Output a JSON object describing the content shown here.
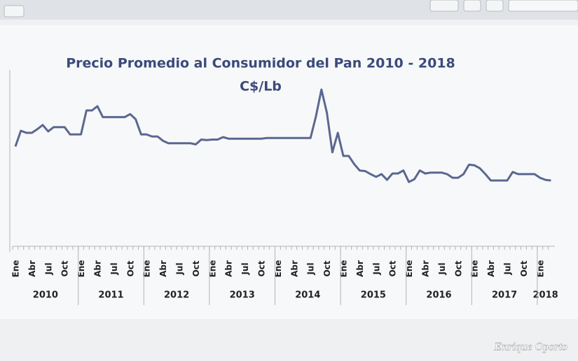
{
  "chart_data": {
    "type": "line",
    "title": "Precio Promedio al Consumidor del Pan 2010 - 2018",
    "subtitle": "C$/Lb",
    "categories": [
      "Ene",
      null,
      null,
      "Abr",
      null,
      null,
      "Jul",
      null,
      null,
      "Oct",
      null,
      null,
      "Ene",
      null,
      null,
      "Abr",
      null,
      null,
      "Jul",
      null,
      null,
      "Oct",
      null,
      null,
      "Ene",
      null,
      null,
      "Abr",
      null,
      null,
      "Jul",
      null,
      null,
      "Oct",
      null,
      null,
      "Ene",
      null,
      null,
      "Abr",
      null,
      null,
      "Jul",
      null,
      null,
      "Oct",
      null,
      null,
      "Ene",
      null,
      null,
      "Abr",
      null,
      null,
      "Jul",
      null,
      null,
      "Oct",
      null,
      null,
      "Ene",
      null,
      null,
      "Abr",
      null,
      null,
      "Jul",
      null,
      null,
      "Oct",
      null,
      null,
      "Ene",
      null,
      null,
      "Abr",
      null,
      null,
      "Jul",
      null,
      null,
      "Oct",
      null,
      null,
      "Ene",
      null,
      null,
      "Abr",
      null,
      null,
      "Jul",
      null,
      null,
      "Oct",
      null,
      null,
      "Ene",
      null,
      null
    ],
    "years": [
      "2010",
      "2011",
      "2012",
      "2013",
      "2014",
      "2015",
      "2016",
      "2017",
      "2018"
    ],
    "series": [
      {
        "color": "#5b6791",
        "values": [
          3.29,
          3.81,
          3.74,
          3.74,
          3.86,
          4.0,
          3.79,
          3.93,
          3.93,
          3.93,
          3.69,
          3.69,
          3.69,
          4.48,
          4.48,
          4.62,
          4.26,
          4.26,
          4.26,
          4.26,
          4.26,
          4.36,
          4.19,
          3.69,
          3.69,
          3.62,
          3.62,
          3.48,
          3.4,
          3.4,
          3.4,
          3.4,
          3.4,
          3.36,
          3.52,
          3.5,
          3.52,
          3.52,
          3.6,
          3.55,
          3.55,
          3.55,
          3.55,
          3.55,
          3.55,
          3.55,
          3.57,
          3.57,
          3.57,
          3.57,
          3.57,
          3.57,
          3.57,
          3.57,
          3.57,
          4.29,
          5.17,
          4.4,
          3.1,
          3.74,
          2.98,
          2.98,
          2.71,
          2.5,
          2.48,
          2.38,
          2.29,
          2.38,
          2.19,
          2.4,
          2.4,
          2.5,
          2.12,
          2.21,
          2.5,
          2.4,
          2.43,
          2.43,
          2.43,
          2.38,
          2.26,
          2.26,
          2.38,
          2.69,
          2.67,
          2.57,
          2.38,
          2.17,
          2.17,
          2.17,
          2.17,
          2.45,
          2.38,
          2.38,
          2.38,
          2.38,
          2.26,
          2.19,
          2.17
        ]
      }
    ],
    "ylim": [
      0,
      6
    ]
  },
  "watermark": "Enrique Oporto"
}
